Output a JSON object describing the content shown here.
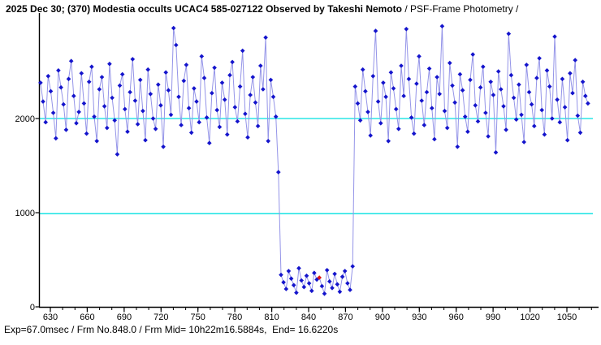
{
  "header": {
    "title_bold": "2025 Dec 30; (370) Modestia occults UCAC4 585-027122 Observed by Takeshi Nemoto",
    "title_regular": " / PSF-Frame Photometry /"
  },
  "footer": {
    "info": "Exp=67.0msec / Frm No.848.0 / Frm Mid= 10h22m16.5884s,  End= 16.6220s"
  },
  "chart_data": {
    "type": "line",
    "title": "2025 Dec 30; (370) Modestia occults UCAC4 585-027122 Observed by Takeshi Nemoto / PSF-Frame Photometry /",
    "xlabel": "",
    "ylabel": "",
    "x_start": 622.0,
    "x_step": 2.08,
    "xlim": [
      620.8,
      1075.8
    ],
    "ylim": [
      0,
      3100
    ],
    "x_ticks_major": [
      630,
      660,
      690,
      720,
      750,
      780,
      810,
      840,
      870,
      900,
      930,
      960,
      990,
      1020,
      1050
    ],
    "x_minor_step": 10,
    "y_ticks": [
      0,
      1000,
      2000
    ],
    "reference_lines": [
      2000,
      990
    ],
    "grid": false,
    "legend": "none",
    "highlight_index": 109,
    "values": [
      2380,
      2180,
      1960,
      2450,
      2290,
      2060,
      1790,
      2510,
      2330,
      2150,
      1880,
      2420,
      2610,
      2240,
      1950,
      2070,
      2480,
      2160,
      1840,
      2390,
      2550,
      2020,
      1760,
      2310,
      2440,
      2130,
      1900,
      2580,
      2220,
      1980,
      1620,
      2350,
      2470,
      2100,
      1860,
      2280,
      2630,
      2190,
      1940,
      2410,
      2080,
      1770,
      2520,
      2260,
      2000,
      1890,
      2360,
      2140,
      1700,
      2490,
      2300,
      2040,
      2960,
      2780,
      2230,
      1930,
      2400,
      2570,
      2110,
      1850,
      2320,
      2180,
      1960,
      2660,
      2430,
      2010,
      1740,
      2270,
      2540,
      2090,
      1910,
      2380,
      2200,
      1830,
      2460,
      2600,
      2120,
      1970,
      2340,
      2720,
      2050,
      1800,
      2250,
      2440,
      2170,
      1920,
      2560,
      2310,
      2860,
      1760,
      2410,
      2230,
      2020,
      1430,
      340,
      260,
      190,
      380,
      300,
      230,
      150,
      410,
      280,
      210,
      330,
      250,
      170,
      360,
      290,
      310,
      220,
      140,
      390,
      270,
      200,
      350,
      240,
      160,
      320,
      380,
      250,
      180,
      430,
      2340,
      2160,
      1980,
      2520,
      2290,
      2070,
      1820,
      2450,
      2930,
      2180,
      1950,
      2380,
      2230,
      1760,
      2490,
      2320,
      2100,
      1890,
      2560,
      2240,
      2950,
      2420,
      2010,
      1840,
      2370,
      2660,
      2190,
      1930,
      2280,
      2530,
      2110,
      1780,
      2440,
      2260,
      2980,
      2080,
      1900,
      2590,
      2350,
      2170,
      1700,
      2470,
      2300,
      2020,
      1860,
      2410,
      2680,
      2140,
      1970,
      2330,
      2550,
      2060,
      1810,
      2390,
      2250,
      1640,
      2500,
      2310,
      2130,
      1880,
      2900,
      2460,
      2220,
      1990,
      2360,
      2040,
      1750,
      2570,
      2280,
      2150,
      1920,
      2430,
      2640,
      2090,
      1830,
      2510,
      2340,
      2000,
      2870,
      2200,
      1960,
      2420,
      2120,
      1770,
      2480,
      2270,
      2620,
      2030,
      1850,
      2390,
      2240,
      2160
    ],
    "colors": {
      "marker": "#1414cc",
      "line": "#9494e8",
      "reference": "#00e0e0",
      "highlight": "#dd1111",
      "axis": "#000000",
      "background": "#ffffff"
    }
  }
}
